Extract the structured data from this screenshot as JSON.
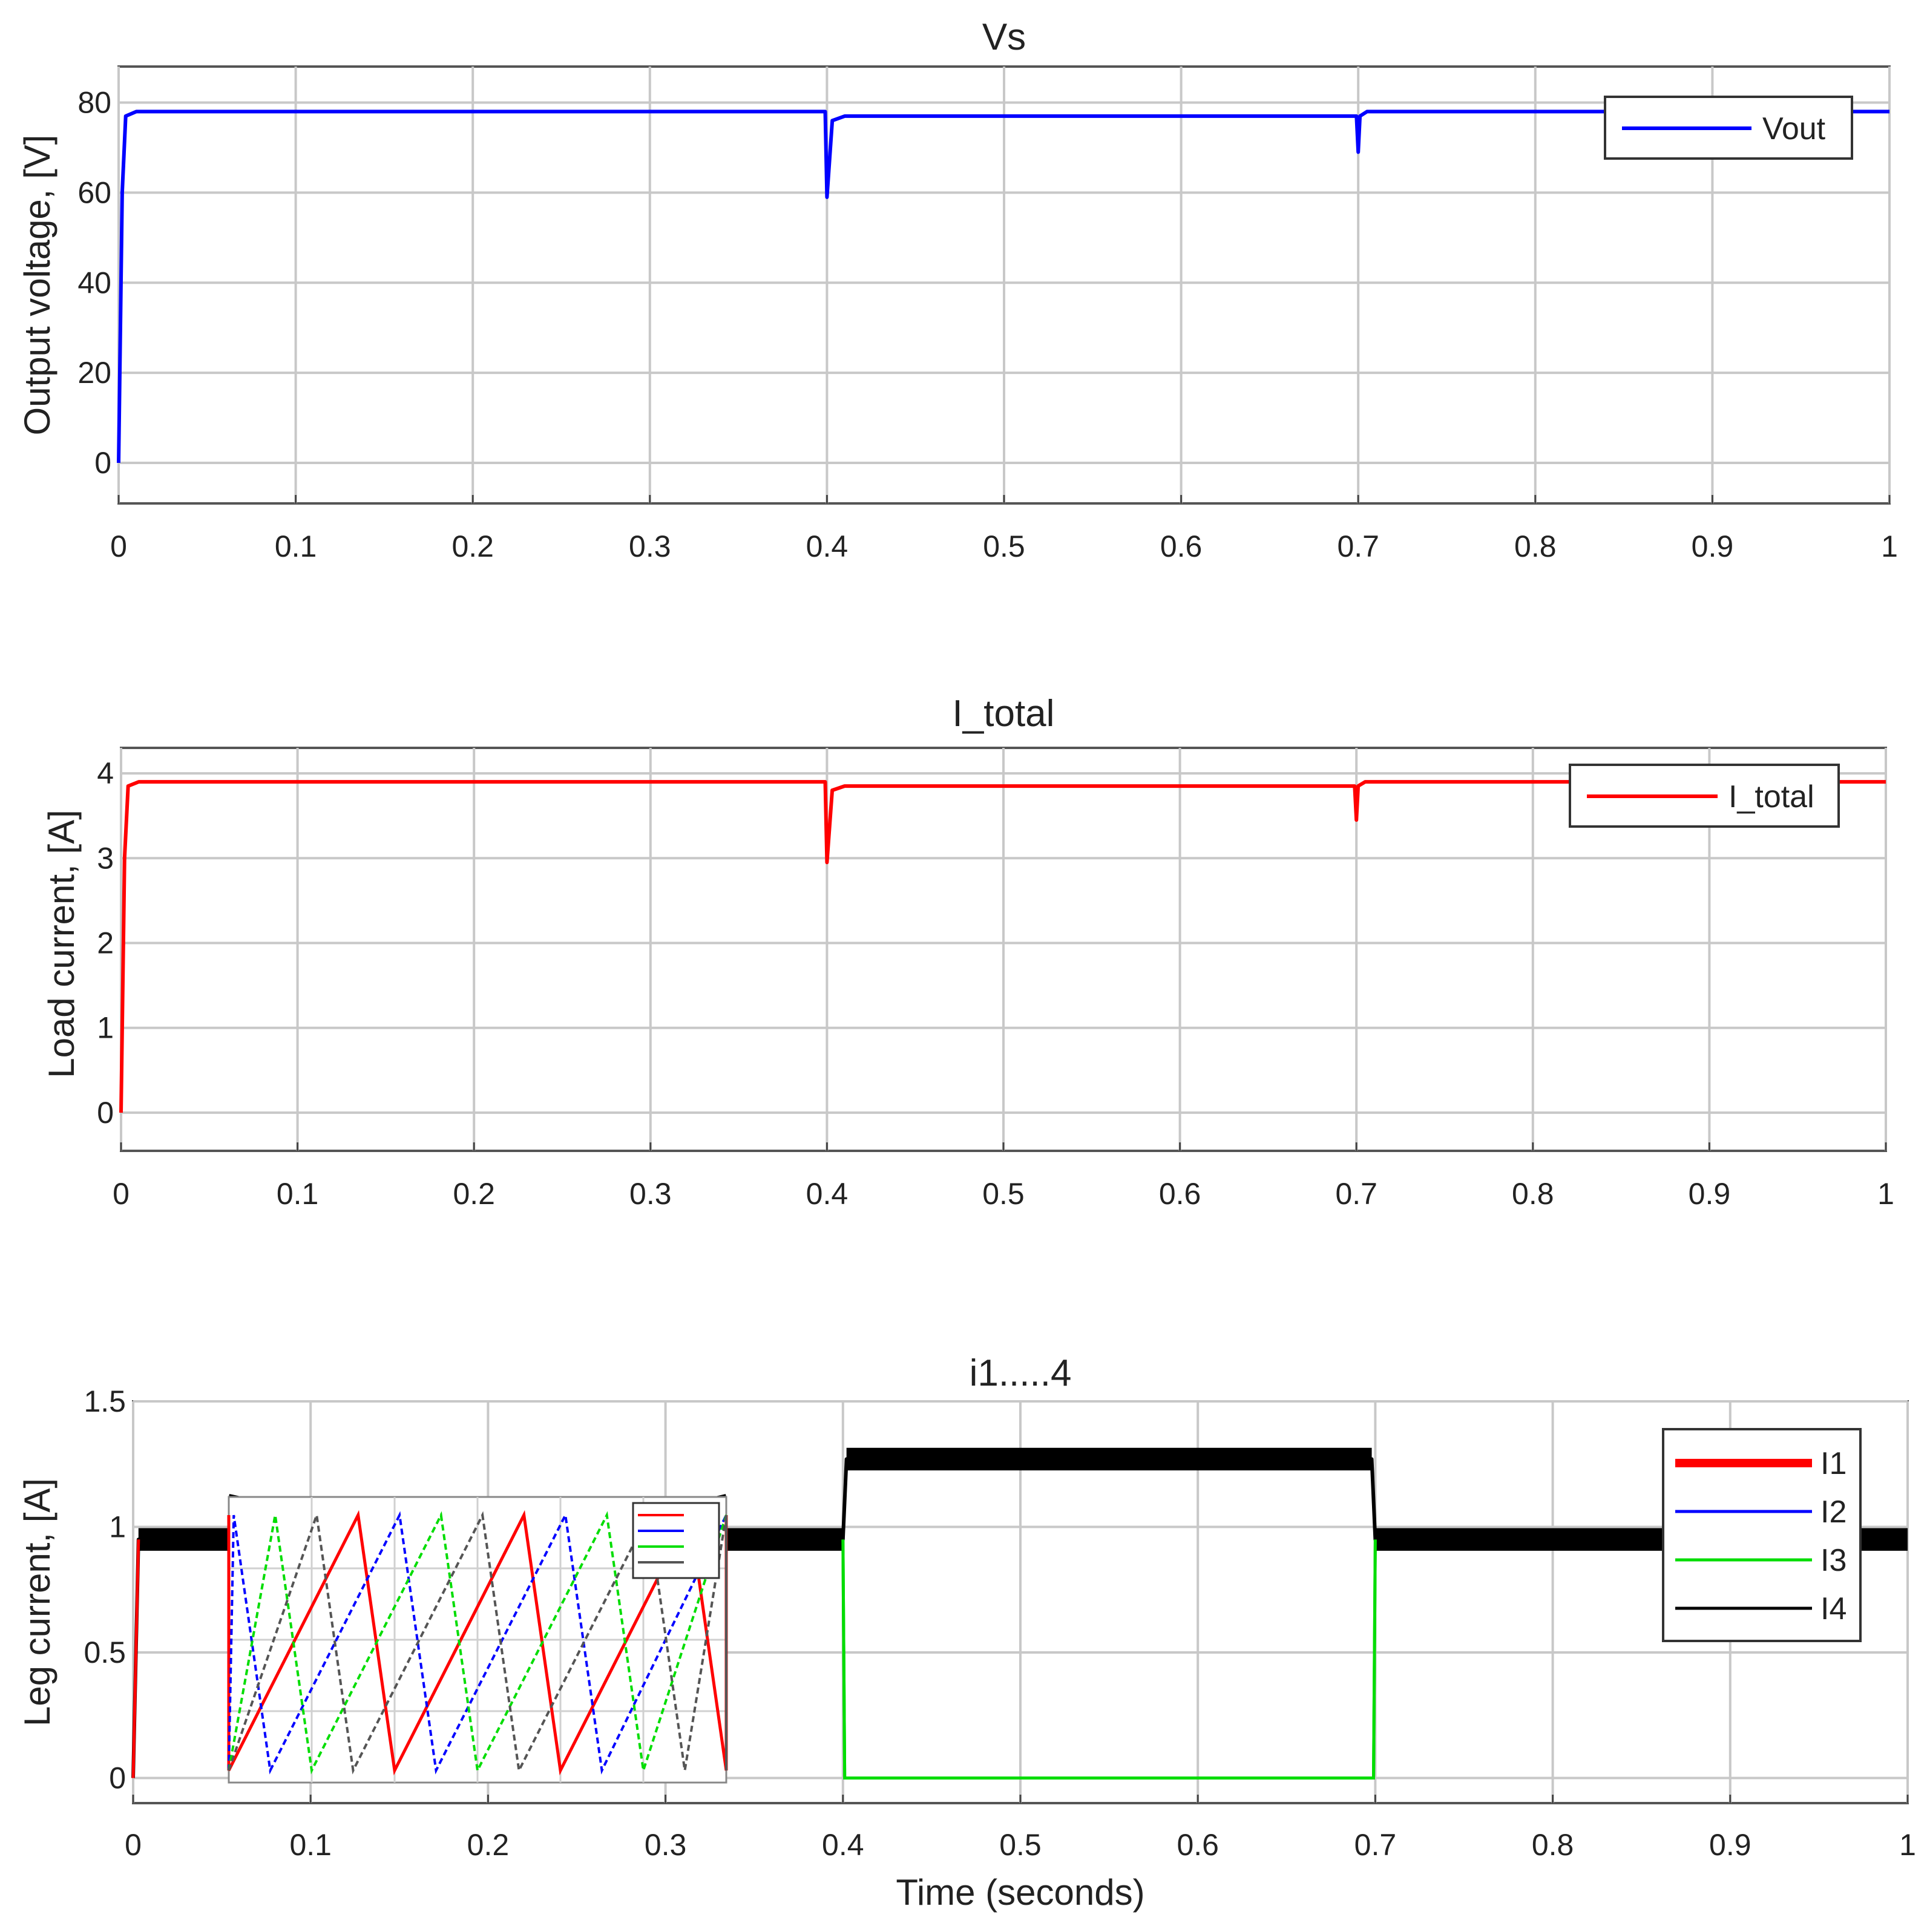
{
  "chart_data": [
    {
      "type": "line",
      "title": "Vs",
      "xlabel": "",
      "ylabel": "Output voltage, [V]",
      "xlim": [
        0,
        1
      ],
      "ylim": [
        -9,
        88
      ],
      "xticks": [
        "0",
        "0.1",
        "0.2",
        "0.3",
        "0.4",
        "0.5",
        "0.6",
        "0.7",
        "0.8",
        "0.9",
        "1"
      ],
      "yticks": [
        "0",
        "20",
        "40",
        "60",
        "80"
      ],
      "grid": true,
      "legend_position": "top-right",
      "series": [
        {
          "name": "Vout",
          "color": "#0000ff",
          "points": [
            [
              0,
              0
            ],
            [
              0.002,
              60
            ],
            [
              0.004,
              77
            ],
            [
              0.01,
              78
            ],
            [
              0.399,
              78
            ],
            [
              0.4,
              59
            ],
            [
              0.403,
              76
            ],
            [
              0.41,
              77
            ],
            [
              0.699,
              77
            ],
            [
              0.7,
              69
            ],
            [
              0.701,
              77
            ],
            [
              0.705,
              78
            ],
            [
              1,
              78
            ]
          ]
        }
      ]
    },
    {
      "type": "line",
      "title": "I_total",
      "xlabel": "",
      "ylabel": "Load current, [A]",
      "xlim": [
        0,
        1
      ],
      "ylim": [
        -0.45,
        4.3
      ],
      "xticks": [
        "0",
        "0.1",
        "0.2",
        "0.3",
        "0.4",
        "0.5",
        "0.6",
        "0.7",
        "0.8",
        "0.9",
        "1"
      ],
      "yticks": [
        "0",
        "1",
        "2",
        "3",
        "4"
      ],
      "grid": true,
      "legend_position": "top-right",
      "series": [
        {
          "name": "I_total",
          "color": "#ff0000",
          "points": [
            [
              0,
              0
            ],
            [
              0.002,
              3.0
            ],
            [
              0.004,
              3.85
            ],
            [
              0.01,
              3.9
            ],
            [
              0.399,
              3.9
            ],
            [
              0.4,
              2.95
            ],
            [
              0.403,
              3.8
            ],
            [
              0.41,
              3.85
            ],
            [
              0.699,
              3.85
            ],
            [
              0.7,
              3.45
            ],
            [
              0.701,
              3.85
            ],
            [
              0.705,
              3.9
            ],
            [
              1,
              3.9
            ]
          ]
        }
      ]
    },
    {
      "type": "line",
      "title": "i1.....4",
      "xlabel": "Time (seconds)",
      "ylabel": "Leg current, [A]",
      "xlim": [
        0,
        1
      ],
      "ylim": [
        -0.1,
        1.5
      ],
      "xticks": [
        "0",
        "0.1",
        "0.2",
        "0.3",
        "0.4",
        "0.5",
        "0.6",
        "0.7",
        "0.8",
        "0.9",
        "1"
      ],
      "yticks": [
        "0",
        "0.5",
        "1",
        "1.5"
      ],
      "grid": true,
      "legend_position": "top-right",
      "series": [
        {
          "name": "I1",
          "color": "#ff0000",
          "points": [
            [
              0,
              0
            ],
            [
              0.003,
              0.95
            ],
            [
              0.4,
              0.95
            ],
            [
              0.402,
              1.27
            ],
            [
              0.698,
              1.27
            ],
            [
              0.7,
              0.95
            ],
            [
              1,
              0.95
            ]
          ]
        },
        {
          "name": "I2",
          "color": "#0000ff",
          "points": [
            [
              0,
              0
            ],
            [
              0.003,
              0.95
            ],
            [
              0.4,
              0.95
            ],
            [
              0.402,
              1.27
            ],
            [
              0.698,
              1.27
            ],
            [
              0.7,
              0.95
            ],
            [
              1,
              0.95
            ]
          ]
        },
        {
          "name": "I3",
          "color": "#00dd00",
          "points": [
            [
              0,
              0
            ],
            [
              0.003,
              0.95
            ],
            [
              0.4,
              0.95
            ],
            [
              0.401,
              0
            ],
            [
              0.699,
              0
            ],
            [
              0.7,
              0.95
            ],
            [
              1,
              0.95
            ]
          ]
        },
        {
          "name": "I4",
          "color": "#000000",
          "points": [
            [
              0,
              0
            ],
            [
              0.003,
              0.95
            ],
            [
              0.4,
              0.95
            ],
            [
              0.402,
              1.27
            ],
            [
              0.698,
              1.27
            ],
            [
              0.7,
              0.95
            ],
            [
              1,
              0.95
            ]
          ]
        }
      ],
      "band_ripple": 0.09,
      "inset": {
        "zoom_at_x": 0.2,
        "zoom_at_y": 0.95,
        "series_colors": [
          "#ff0000",
          "#0000ff",
          "#00dd00",
          "#555555"
        ],
        "cycles": 3
      }
    }
  ]
}
